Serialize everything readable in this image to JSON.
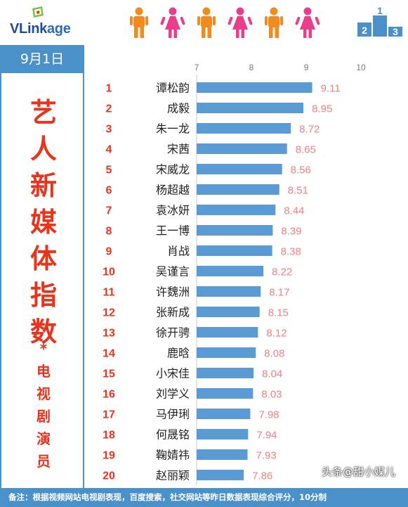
{
  "header": {
    "logo_text_main": "VLink",
    "logo_text_tail": "age",
    "podium_numbers": [
      "2",
      "1",
      "3"
    ],
    "person_colors": [
      "#f28a1e",
      "#e83e8c",
      "#f28a1e",
      "#e83e8c",
      "#f28a1e",
      "#e83e8c"
    ]
  },
  "date_label": "9月1日",
  "side_panel": {
    "title_chars": [
      "艺",
      "人",
      "新",
      "媒",
      "体",
      "指",
      "数"
    ],
    "asterisk": "*",
    "sub_chars": [
      "电",
      "视",
      "剧",
      "演",
      "员"
    ]
  },
  "colors": {
    "bar": "#5b9bd5",
    "rank": "#e8341c",
    "value": "#f08080",
    "accent": "#4a90c9"
  },
  "chart_data": {
    "type": "bar",
    "orientation": "horizontal",
    "x_ticks": [
      "7",
      "8",
      "9",
      "10"
    ],
    "xlim": [
      7,
      10
    ],
    "grid": false,
    "categories": [
      "谭松韵",
      "成毅",
      "朱一龙",
      "宋茜",
      "宋威龙",
      "杨超越",
      "袁冰妍",
      "王一博",
      "肖战",
      "吴谨言",
      "许魏洲",
      "张新成",
      "徐开骋",
      "鹿晗",
      "小宋佳",
      "刘学义",
      "马伊琍",
      "何晟铭",
      "鞠婧祎",
      "赵丽颖"
    ],
    "ranks": [
      "1",
      "2",
      "3",
      "4",
      "5",
      "6",
      "7",
      "8",
      "9",
      "10",
      "11",
      "12",
      "13",
      "14",
      "15",
      "16",
      "17",
      "18",
      "19",
      "20"
    ],
    "values": [
      9.11,
      8.95,
      8.72,
      8.65,
      8.56,
      8.51,
      8.44,
      8.39,
      8.38,
      8.22,
      8.17,
      8.15,
      8.12,
      8.08,
      8.04,
      8.03,
      7.98,
      7.94,
      7.93,
      7.86
    ],
    "value_labels": [
      "9.11",
      "8.95",
      "8.72",
      "8.65",
      "8.56",
      "8.51",
      "8.44",
      "8.39",
      "8.38",
      "8.22",
      "8.17",
      "8.15",
      "8.12",
      "8.08",
      "8.04",
      "8.03",
      "7.98",
      "7.94",
      "7.93",
      "7.86"
    ]
  },
  "footer": {
    "note": "备注：根据视频网站电视剧表现，百度搜索，社交网站等昨日数据表现综合评分，10分制",
    "watermark": "头条@甜小媒儿"
  }
}
